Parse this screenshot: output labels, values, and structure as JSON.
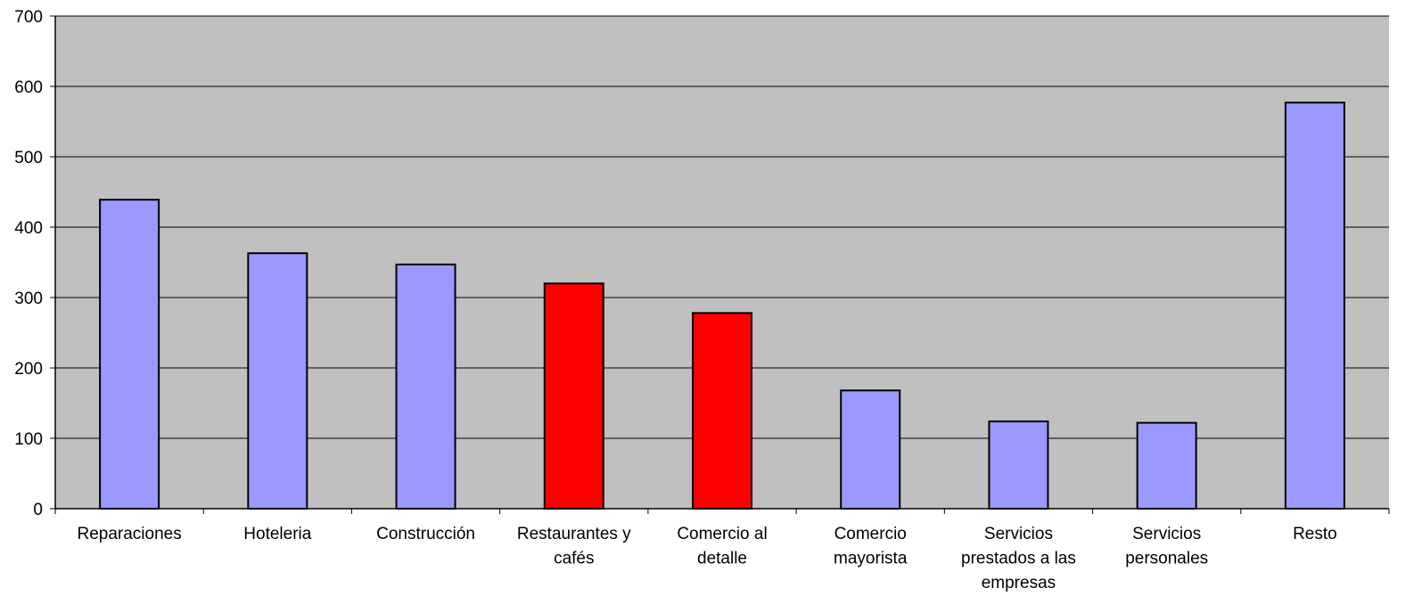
{
  "chart_data": {
    "type": "bar",
    "title": "",
    "xlabel": "",
    "ylabel": "",
    "ylim": [
      0,
      700
    ],
    "yticks": [
      0,
      100,
      200,
      300,
      400,
      500,
      600,
      700
    ],
    "grid": true,
    "legend": "none",
    "categories": [
      [
        "Reparaciones"
      ],
      [
        "Hoteleria"
      ],
      [
        "Construcción"
      ],
      [
        "Restaurantes y",
        "cafés"
      ],
      [
        "Comercio al",
        "detalle"
      ],
      [
        "Comercio",
        "mayorista"
      ],
      [
        "Servicios",
        "prestados a las",
        "empresas"
      ],
      [
        "Servicios",
        "personales"
      ],
      [
        "Resto"
      ]
    ],
    "values": [
      439,
      363,
      347,
      320,
      278,
      168,
      124,
      122,
      577
    ],
    "highlight": [
      false,
      false,
      false,
      true,
      true,
      false,
      false,
      false,
      false
    ],
    "colors": {
      "plot_background": "#c0c0c0",
      "bar": "#9999ff",
      "bar_highlight": "#ff0000",
      "bar_outline": "#000000",
      "gridline": "#000000"
    }
  }
}
